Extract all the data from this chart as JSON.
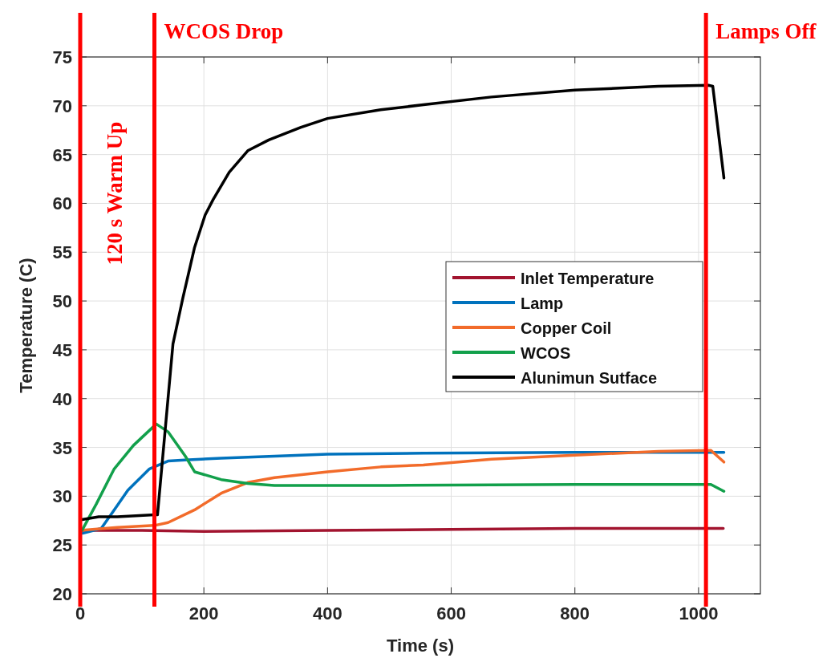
{
  "chart_data": {
    "type": "line",
    "xlabel": "Time (s)",
    "ylabel": "Temperature (C)",
    "xlim": [
      0,
      1100
    ],
    "xticks": [
      0,
      200,
      400,
      600,
      800,
      1000
    ],
    "ylim": [
      20,
      75
    ],
    "yticks": [
      20,
      25,
      30,
      35,
      40,
      45,
      50,
      55,
      60,
      65,
      70,
      75
    ],
    "grid": true,
    "legend": "right",
    "line_style": "solid",
    "marker": "none",
    "ref_lines": [
      {
        "axis": "x",
        "value": 0,
        "label": "120 s Warm Up",
        "color": "#ff0000"
      },
      {
        "axis": "x",
        "value": 120,
        "label": "WCOS Drop",
        "color": "#ff0000"
      },
      {
        "axis": "x",
        "value": 1012,
        "label": "Lamps Off",
        "color": "#ff0000"
      }
    ],
    "series": [
      {
        "name": "Inlet Temperature",
        "color": "#a2142f",
        "x": [
          0,
          100,
          200,
          400,
          600,
          800,
          1000,
          1040
        ],
        "values": [
          26.5,
          26.5,
          26.4,
          26.5,
          26.6,
          26.7,
          26.7,
          26.7
        ]
      },
      {
        "name": "Lamp",
        "color": "#0072bd",
        "x": [
          4,
          34,
          55,
          77,
          112,
          142,
          169,
          228,
          314,
          400,
          555,
          800,
          1020,
          1041
        ],
        "values": [
          26.2,
          26.7,
          28.6,
          30.6,
          32.8,
          33.6,
          33.7,
          33.9,
          34.1,
          34.3,
          34.4,
          34.5,
          34.5,
          34.5
        ]
      },
      {
        "name": "Copper Coil",
        "color": "#f26b2a",
        "x": [
          0,
          60,
          120,
          142,
          185,
          228,
          271,
          314,
          400,
          486,
          555,
          665,
          800,
          935,
          1020,
          1041
        ],
        "values": [
          26.5,
          26.8,
          27.0,
          27.3,
          28.6,
          30.3,
          31.4,
          31.9,
          32.5,
          33.0,
          33.2,
          33.8,
          34.2,
          34.6,
          34.7,
          33.5
        ]
      },
      {
        "name": "WCOS",
        "color": "#12a04b",
        "x": [
          3,
          26,
          55,
          86,
          123,
          142,
          170,
          185,
          228,
          271,
          314,
          500,
          800,
          1020,
          1041
        ],
        "values": [
          26.5,
          29.2,
          32.8,
          35.2,
          37.4,
          36.6,
          34.1,
          32.5,
          31.7,
          31.3,
          31.1,
          31.1,
          31.2,
          31.2,
          30.5
        ]
      },
      {
        "name": "Alunimun Sutface",
        "color": "#000000",
        "x": [
          3,
          30,
          60,
          90,
          120,
          125,
          150,
          166,
          185,
          202,
          215,
          241,
          271,
          305,
          357,
          400,
          486,
          555,
          665,
          800,
          935,
          1016,
          1023,
          1041
        ],
        "values": [
          27.6,
          27.9,
          27.9,
          28.0,
          28.1,
          28.1,
          45.6,
          50.3,
          55.5,
          58.8,
          60.4,
          63.2,
          65.4,
          66.5,
          67.8,
          68.7,
          69.6,
          70.1,
          70.9,
          71.6,
          72.0,
          72.1,
          72.0,
          62.6
        ]
      }
    ]
  }
}
